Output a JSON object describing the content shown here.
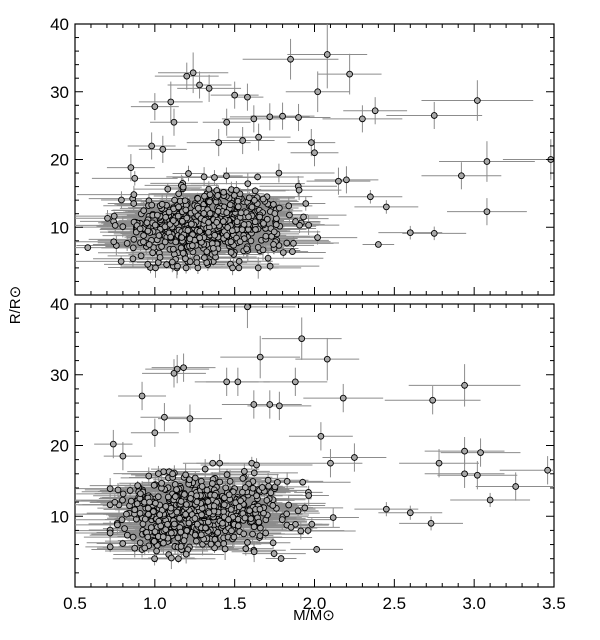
{
  "chart_data": [
    {
      "type": "scatter",
      "panel": "top",
      "xlim": [
        0.5,
        3.5
      ],
      "ylim": [
        0,
        40
      ],
      "x_ticks": [
        0.5,
        1.0,
        1.5,
        2.0,
        2.5,
        3.0,
        3.5
      ],
      "y_ticks": [
        0,
        10,
        20,
        30,
        40
      ],
      "y_tick_labels": [
        "",
        "10",
        "20",
        "30",
        "40"
      ],
      "error_bars": true,
      "marker_color": "#a9a9a9",
      "errorbar_color": "#8c8c8c",
      "cluster": {
        "n": 620,
        "seed": 11,
        "x_center": 1.32,
        "x_spread": 0.25,
        "y_center": 10.2,
        "y_spread": 2.6,
        "x_min": 0.58,
        "x_max": 2.4,
        "y_min": 4,
        "y_max": 18
      },
      "points": [
        {
          "x": 1.2,
          "y": 32.3,
          "xerr": 0.2,
          "yerr": 2
        },
        {
          "x": 1.24,
          "y": 32.8,
          "xerr": 0.22,
          "yerr": 3
        },
        {
          "x": 1.34,
          "y": 30.5,
          "xerr": 0.2,
          "yerr": 2
        },
        {
          "x": 1.28,
          "y": 31.0,
          "xerr": 0.2,
          "yerr": 2
        },
        {
          "x": 1.1,
          "y": 28.5,
          "xerr": 0.2,
          "yerr": 3
        },
        {
          "x": 1.5,
          "y": 29.5,
          "xerr": 0.15,
          "yerr": 2
        },
        {
          "x": 1.58,
          "y": 29.2,
          "xerr": 0.1,
          "yerr": 2
        },
        {
          "x": 1.0,
          "y": 27.8,
          "xerr": 0.15,
          "yerr": 2
        },
        {
          "x": 1.12,
          "y": 25.5,
          "xerr": 0.15,
          "yerr": 2
        },
        {
          "x": 1.45,
          "y": 25.5,
          "xerr": 0.15,
          "yerr": 2
        },
        {
          "x": 1.62,
          "y": 26.0,
          "xerr": 0.2,
          "yerr": 2
        },
        {
          "x": 1.72,
          "y": 26.3,
          "xerr": 0.25,
          "yerr": 2
        },
        {
          "x": 1.8,
          "y": 26.4,
          "xerr": 0.2,
          "yerr": 2
        },
        {
          "x": 1.85,
          "y": 34.8,
          "xerr": 0.3,
          "yerr": 3
        },
        {
          "x": 2.08,
          "y": 35.5,
          "xerr": 0.25,
          "yerr": 5
        },
        {
          "x": 2.22,
          "y": 32.6,
          "xerr": 0.2,
          "yerr": 3
        },
        {
          "x": 2.02,
          "y": 30.0,
          "xerr": 0.2,
          "yerr": 3
        },
        {
          "x": 2.3,
          "y": 26.0,
          "xerr": 0.25,
          "yerr": 2
        },
        {
          "x": 2.38,
          "y": 27.2,
          "xerr": 0.2,
          "yerr": 2
        },
        {
          "x": 2.75,
          "y": 26.5,
          "xerr": 0.3,
          "yerr": 2
        },
        {
          "x": 3.02,
          "y": 28.7,
          "xerr": 0.35,
          "yerr": 3
        },
        {
          "x": 3.48,
          "y": 20.0,
          "xerr": 0.3,
          "yerr": 3
        },
        {
          "x": 3.08,
          "y": 19.7,
          "xerr": 0.3,
          "yerr": 3
        },
        {
          "x": 2.92,
          "y": 17.6,
          "xerr": 0.25,
          "yerr": 2
        },
        {
          "x": 3.08,
          "y": 12.3,
          "xerr": 0.25,
          "yerr": 2
        },
        {
          "x": 2.75,
          "y": 9.1,
          "xerr": 0.2,
          "yerr": 1
        },
        {
          "x": 2.6,
          "y": 9.2,
          "xerr": 0.2,
          "yerr": 1
        },
        {
          "x": 1.98,
          "y": 22.5,
          "xerr": 0.15,
          "yerr": 2
        },
        {
          "x": 2.0,
          "y": 21.0,
          "xerr": 0.15,
          "yerr": 2
        },
        {
          "x": 1.65,
          "y": 23.3,
          "xerr": 0.2,
          "yerr": 2
        },
        {
          "x": 1.4,
          "y": 22.5,
          "xerr": 0.2,
          "yerr": 2
        },
        {
          "x": 1.55,
          "y": 22.8,
          "xerr": 0.2,
          "yerr": 2
        },
        {
          "x": 1.9,
          "y": 26.2,
          "xerr": 0.2,
          "yerr": 2
        },
        {
          "x": 2.2,
          "y": 17.0,
          "xerr": 0.2,
          "yerr": 2
        },
        {
          "x": 2.15,
          "y": 16.8,
          "xerr": 0.2,
          "yerr": 2
        },
        {
          "x": 2.35,
          "y": 14.5,
          "xerr": 0.2,
          "yerr": 1
        },
        {
          "x": 2.45,
          "y": 13.0,
          "xerr": 0.2,
          "yerr": 1
        },
        {
          "x": 0.98,
          "y": 22.0,
          "xerr": 0.15,
          "yerr": 2
        },
        {
          "x": 1.05,
          "y": 21.5,
          "xerr": 0.15,
          "yerr": 2
        },
        {
          "x": 0.85,
          "y": 18.8,
          "xerr": 0.15,
          "yerr": 2
        }
      ]
    },
    {
      "type": "scatter",
      "panel": "bottom",
      "xlim": [
        0.5,
        3.5
      ],
      "ylim": [
        0,
        40
      ],
      "x_ticks": [
        0.5,
        1.0,
        1.5,
        2.0,
        2.5,
        3.0,
        3.5
      ],
      "x_tick_labels": [
        "0.5",
        "1.0",
        "1.5",
        "2.0",
        "2.5",
        "3.0",
        "3.5"
      ],
      "y_ticks": [
        0,
        10,
        20,
        30,
        40
      ],
      "y_tick_labels": [
        "",
        "10",
        "20",
        "30",
        "40"
      ],
      "xlabel": "M/M⊙",
      "error_bars": true,
      "marker_color": "#a9a9a9",
      "errorbar_color": "#8c8c8c",
      "cluster": {
        "n": 640,
        "seed": 29,
        "x_center": 1.28,
        "x_spread": 0.26,
        "y_center": 10.4,
        "y_spread": 2.5,
        "x_min": 0.72,
        "x_max": 2.45,
        "y_min": 4,
        "y_max": 17.5
      },
      "points": [
        {
          "x": 1.58,
          "y": 39.6,
          "xerr": 0.3,
          "yerr": 3
        },
        {
          "x": 1.14,
          "y": 30.8,
          "xerr": 0.2,
          "yerr": 2
        },
        {
          "x": 1.12,
          "y": 30.2,
          "xerr": 0.2,
          "yerr": 2
        },
        {
          "x": 1.18,
          "y": 31.0,
          "xerr": 0.2,
          "yerr": 2
        },
        {
          "x": 1.66,
          "y": 32.5,
          "xerr": 0.25,
          "yerr": 3
        },
        {
          "x": 1.92,
          "y": 35.1,
          "xerr": 0.25,
          "yerr": 3
        },
        {
          "x": 2.08,
          "y": 32.2,
          "xerr": 0.2,
          "yerr": 3
        },
        {
          "x": 1.88,
          "y": 29.0,
          "xerr": 0.2,
          "yerr": 2
        },
        {
          "x": 1.45,
          "y": 29.0,
          "xerr": 0.2,
          "yerr": 2
        },
        {
          "x": 1.52,
          "y": 29.0,
          "xerr": 0.2,
          "yerr": 2
        },
        {
          "x": 0.92,
          "y": 27.0,
          "xerr": 0.15,
          "yerr": 2
        },
        {
          "x": 1.62,
          "y": 25.8,
          "xerr": 0.2,
          "yerr": 2
        },
        {
          "x": 1.72,
          "y": 25.8,
          "xerr": 0.2,
          "yerr": 2
        },
        {
          "x": 1.78,
          "y": 25.6,
          "xerr": 0.2,
          "yerr": 2
        },
        {
          "x": 2.18,
          "y": 26.7,
          "xerr": 0.25,
          "yerr": 2
        },
        {
          "x": 2.74,
          "y": 26.4,
          "xerr": 0.3,
          "yerr": 2
        },
        {
          "x": 2.94,
          "y": 28.5,
          "xerr": 0.35,
          "yerr": 3
        },
        {
          "x": 2.04,
          "y": 21.3,
          "xerr": 0.2,
          "yerr": 2
        },
        {
          "x": 1.0,
          "y": 21.8,
          "xerr": 0.15,
          "yerr": 2
        },
        {
          "x": 1.06,
          "y": 24.0,
          "xerr": 0.15,
          "yerr": 2
        },
        {
          "x": 1.22,
          "y": 23.8,
          "xerr": 0.2,
          "yerr": 2
        },
        {
          "x": 2.78,
          "y": 17.5,
          "xerr": 0.25,
          "yerr": 2
        },
        {
          "x": 2.94,
          "y": 19.2,
          "xerr": 0.25,
          "yerr": 2
        },
        {
          "x": 3.04,
          "y": 19.0,
          "xerr": 0.25,
          "yerr": 2
        },
        {
          "x": 2.94,
          "y": 16.0,
          "xerr": 0.25,
          "yerr": 2
        },
        {
          "x": 3.02,
          "y": 15.8,
          "xerr": 0.25,
          "yerr": 2
        },
        {
          "x": 3.46,
          "y": 16.5,
          "xerr": 0.3,
          "yerr": 2
        },
        {
          "x": 3.26,
          "y": 14.2,
          "xerr": 0.25,
          "yerr": 2
        },
        {
          "x": 3.1,
          "y": 12.3,
          "xerr": 0.25,
          "yerr": 1
        },
        {
          "x": 2.73,
          "y": 9.0,
          "xerr": 0.2,
          "yerr": 1
        },
        {
          "x": 2.6,
          "y": 10.5,
          "xerr": 0.2,
          "yerr": 1
        },
        {
          "x": 2.45,
          "y": 11.0,
          "xerr": 0.2,
          "yerr": 1
        },
        {
          "x": 0.74,
          "y": 20.2,
          "xerr": 0.12,
          "yerr": 2
        },
        {
          "x": 0.8,
          "y": 18.5,
          "xerr": 0.12,
          "yerr": 2
        },
        {
          "x": 2.25,
          "y": 18.3,
          "xerr": 0.2,
          "yerr": 2
        },
        {
          "x": 2.1,
          "y": 17.5,
          "xerr": 0.2,
          "yerr": 2
        },
        {
          "x": 1.62,
          "y": 5.2,
          "xerr": 0.2,
          "yerr": 1
        },
        {
          "x": 1.58,
          "y": 6.3,
          "xerr": 0.15,
          "yerr": 1
        }
      ]
    }
  ],
  "shared": {
    "ylabel": "R/R⊙"
  }
}
